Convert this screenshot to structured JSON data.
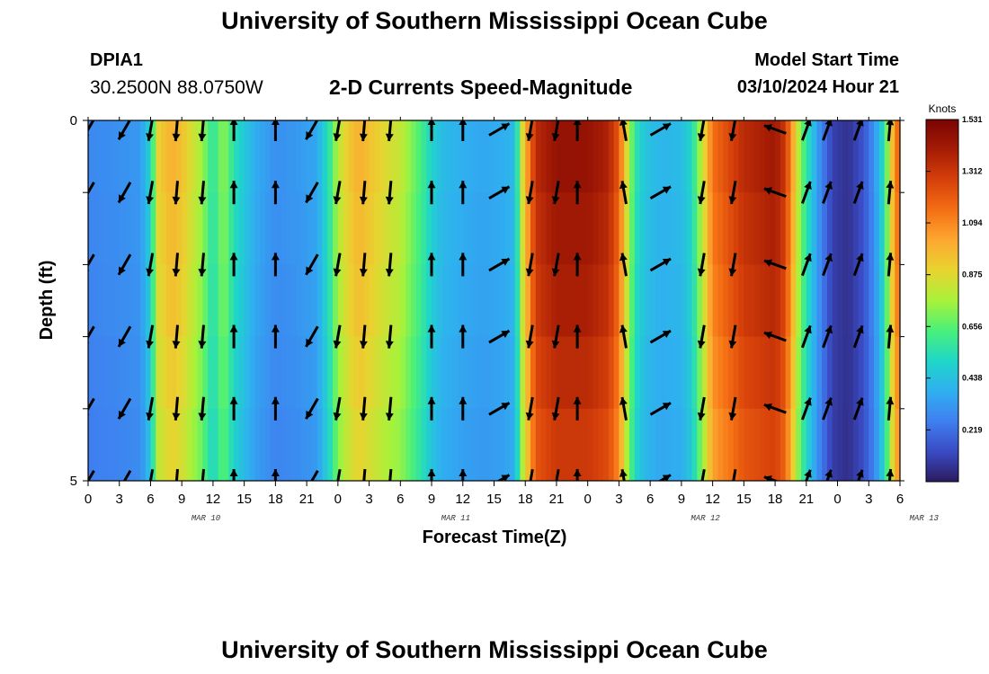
{
  "header": {
    "title": "University of Southern Mississippi Ocean Cube",
    "station_id": "DPIA1",
    "coords": "30.2500N  88.0750W",
    "subtitle": "2-D Currents Speed-Magnitude",
    "model_start_label": "Model Start Time",
    "model_start_value": "03/10/2024 Hour 21"
  },
  "footer": {
    "title": "University of Southern Mississippi Ocean Cube"
  },
  "colors": {
    "palette": [
      "#2b1b5e",
      "#3a4bc4",
      "#3f7ff0",
      "#2fb0f0",
      "#1fd6c8",
      "#49f07a",
      "#a8f23a",
      "#e8d430",
      "#fda830",
      "#f56f14",
      "#d6400a",
      "#a51c05",
      "#7a0403"
    ]
  },
  "chart_data": {
    "type": "heatmap",
    "xlabel": "Forecast Time(Z)",
    "ylabel": "Depth (ft)",
    "colorbar_label": "Knots",
    "colorbar_ticks": [
      "1.531",
      "1.312",
      "1.094",
      "0.875",
      "0.656",
      "0.438",
      "0.219"
    ],
    "colorbar_range": [
      0,
      1.531
    ],
    "x_tick_labels": [
      "0",
      "3",
      "6",
      "9",
      "12",
      "15",
      "18",
      "21",
      "0",
      "3",
      "6",
      "9",
      "12",
      "15",
      "18",
      "21",
      "0",
      "3",
      "6",
      "9",
      "12",
      "15",
      "18",
      "21",
      "0",
      "3",
      "6"
    ],
    "date_labels": [
      {
        "label": "MAR 10",
        "hour": 12
      },
      {
        "label": "MAR 11",
        "hour": 36
      },
      {
        "label": "MAR 12",
        "hour": 60
      },
      {
        "label": "MAR 13",
        "hour": 81
      }
    ],
    "x_range_hours": [
      0,
      78
    ],
    "y_tick_labels": [
      "0",
      "5"
    ],
    "y_range": [
      0,
      5
    ],
    "depth_layers": 5,
    "speed_profile": {
      "hours": [
        0,
        3,
        5,
        6,
        6.7,
        8,
        9,
        10,
        11,
        12,
        13,
        14,
        16,
        18,
        20,
        22,
        23.3,
        24,
        25,
        26,
        27,
        28,
        29,
        30,
        31,
        32,
        33,
        34,
        36,
        38,
        40,
        41,
        41.8,
        43,
        45,
        48,
        50,
        51,
        52,
        52.7,
        53.5,
        55,
        57,
        58,
        59,
        60,
        63,
        66,
        67,
        68.5,
        70,
        71.5,
        73,
        74.5,
        75.5,
        76.5,
        77,
        78
      ],
      "values": [
        0.28,
        0.3,
        0.32,
        0.5,
        0.9,
        1.0,
        0.95,
        0.85,
        0.75,
        0.55,
        0.75,
        0.55,
        0.38,
        0.3,
        0.32,
        0.36,
        0.6,
        0.8,
        0.92,
        1.0,
        0.95,
        0.9,
        0.85,
        0.82,
        0.72,
        0.62,
        0.5,
        0.42,
        0.38,
        0.36,
        0.38,
        0.42,
        0.9,
        1.35,
        1.45,
        1.45,
        1.38,
        1.2,
        0.75,
        0.55,
        0.45,
        0.4,
        0.42,
        0.52,
        0.82,
        1.15,
        1.35,
        1.42,
        1.3,
        0.7,
        0.35,
        0.1,
        0.06,
        0.15,
        0.3,
        0.55,
        0.85,
        1.25
      ]
    },
    "depth_factors": [
      1.0,
      0.98,
      0.96,
      0.93,
      0.9,
      0.82
    ],
    "vectors": {
      "hours": [
        0,
        3.5,
        6,
        8.5,
        11,
        14,
        18,
        21.5,
        24,
        26.5,
        29,
        33,
        36,
        39.5,
        42.5,
        45,
        47,
        51.5,
        55,
        59,
        62,
        66,
        69,
        71,
        74,
        77
      ],
      "angles": [
        -30,
        -30,
        -10,
        -5,
        -5,
        180,
        180,
        -30,
        -10,
        -5,
        -5,
        180,
        180,
        120,
        -10,
        -10,
        180,
        190,
        120,
        -10,
        -10,
        250,
        160,
        160,
        160,
        175
      ]
    }
  }
}
